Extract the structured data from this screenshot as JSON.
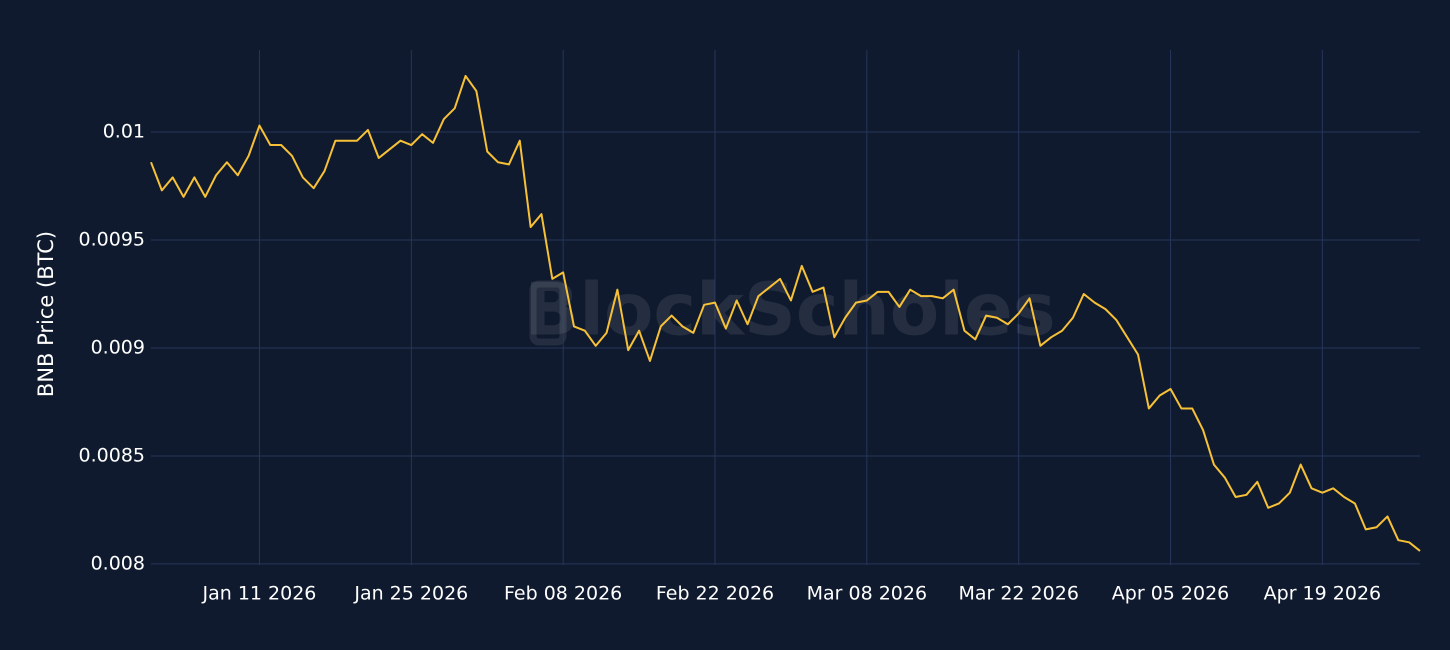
{
  "chart_data": {
    "type": "line",
    "watermark": "BlockScholes",
    "ylabel": "BNB Price (BTC)",
    "x": [
      "2026-01-01",
      "2026-01-02",
      "2026-01-03",
      "2026-01-04",
      "2026-01-05",
      "2026-01-06",
      "2026-01-07",
      "2026-01-08",
      "2026-01-09",
      "2026-01-10",
      "2026-01-11",
      "2026-01-12",
      "2026-01-13",
      "2026-01-14",
      "2026-01-15",
      "2026-01-16",
      "2026-01-17",
      "2026-01-18",
      "2026-01-19",
      "2026-01-20",
      "2026-01-21",
      "2026-01-22",
      "2026-01-23",
      "2026-01-24",
      "2026-01-25",
      "2026-01-26",
      "2026-01-27",
      "2026-01-28",
      "2026-01-29",
      "2026-01-30",
      "2026-01-31",
      "2026-02-01",
      "2026-02-02",
      "2026-02-03",
      "2026-02-04",
      "2026-02-05",
      "2026-02-06",
      "2026-02-07",
      "2026-02-08",
      "2026-02-09",
      "2026-02-10",
      "2026-02-11",
      "2026-02-12",
      "2026-02-13",
      "2026-02-14",
      "2026-02-15",
      "2026-02-16",
      "2026-02-17",
      "2026-02-18",
      "2026-02-19",
      "2026-02-20",
      "2026-02-21",
      "2026-02-22",
      "2026-02-23",
      "2026-02-24",
      "2026-02-25",
      "2026-02-26",
      "2026-02-27",
      "2026-02-28",
      "2026-03-01",
      "2026-03-02",
      "2026-03-03",
      "2026-03-04",
      "2026-03-05",
      "2026-03-06",
      "2026-03-07",
      "2026-03-08",
      "2026-03-09",
      "2026-03-10",
      "2026-03-11",
      "2026-03-12",
      "2026-03-13",
      "2026-03-14",
      "2026-03-15",
      "2026-03-16",
      "2026-03-17",
      "2026-03-18",
      "2026-03-19",
      "2026-03-20",
      "2026-03-21",
      "2026-03-22",
      "2026-03-23",
      "2026-03-24",
      "2026-03-25",
      "2026-03-26",
      "2026-03-27",
      "2026-03-28",
      "2026-03-29",
      "2026-03-30",
      "2026-03-31",
      "2026-04-01",
      "2026-04-02",
      "2026-04-03",
      "2026-04-04",
      "2026-04-05",
      "2026-04-06",
      "2026-04-07",
      "2026-04-08",
      "2026-04-09",
      "2026-04-10",
      "2026-04-11",
      "2026-04-12",
      "2026-04-13",
      "2026-04-14",
      "2026-04-15",
      "2026-04-16",
      "2026-04-17",
      "2026-04-18",
      "2026-04-19",
      "2026-04-20",
      "2026-04-21",
      "2026-04-22",
      "2026-04-23",
      "2026-04-24",
      "2026-04-25",
      "2026-04-26",
      "2026-04-27",
      "2026-04-28"
    ],
    "series": [
      {
        "name": "BNB",
        "color": "#f7c137",
        "values": [
          0.00986,
          0.00973,
          0.00979,
          0.0097,
          0.00979,
          0.0097,
          0.0098,
          0.00986,
          0.0098,
          0.00989,
          0.01003,
          0.00994,
          0.00994,
          0.00989,
          0.00979,
          0.00974,
          0.00982,
          0.00996,
          0.00996,
          0.00996,
          0.01001,
          0.00988,
          0.00992,
          0.00996,
          0.00994,
          0.00999,
          0.00995,
          0.01006,
          0.01011,
          0.01026,
          0.01019,
          0.00991,
          0.00986,
          0.00985,
          0.00996,
          0.00956,
          0.00962,
          0.00932,
          0.00935,
          0.0091,
          0.00908,
          0.00901,
          0.00907,
          0.00927,
          0.00899,
          0.00908,
          0.00894,
          0.0091,
          0.00915,
          0.0091,
          0.00907,
          0.0092,
          0.00921,
          0.00909,
          0.00922,
          0.00911,
          0.00924,
          0.00928,
          0.00932,
          0.00922,
          0.00938,
          0.00926,
          0.00928,
          0.00905,
          0.00914,
          0.00921,
          0.00922,
          0.00926,
          0.00926,
          0.00919,
          0.00927,
          0.00924,
          0.00924,
          0.00923,
          0.00927,
          0.00908,
          0.00904,
          0.00915,
          0.00914,
          0.00911,
          0.00916,
          0.00923,
          0.00901,
          0.00905,
          0.00908,
          0.00914,
          0.00925,
          0.00921,
          0.00918,
          0.00913,
          0.00905,
          0.00897,
          0.00872,
          0.00878,
          0.00881,
          0.00872,
          0.00872,
          0.00862,
          0.00846,
          0.0084,
          0.00831,
          0.00832,
          0.00838,
          0.00826,
          0.00828,
          0.00833,
          0.00846,
          0.00835,
          0.00833,
          0.00835,
          0.00831,
          0.00828,
          0.00816,
          0.00817,
          0.00822,
          0.00811,
          0.0081,
          0.00806
        ]
      }
    ],
    "xlim": [
      "2026-01-01",
      "2026-04-28"
    ],
    "xticks": [
      {
        "value": "2026-01-11",
        "label": "Jan 11 2026"
      },
      {
        "value": "2026-01-25",
        "label": "Jan 25 2026"
      },
      {
        "value": "2026-02-08",
        "label": "Feb 08 2026"
      },
      {
        "value": "2026-02-22",
        "label": "Feb 22 2026"
      },
      {
        "value": "2026-03-08",
        "label": "Mar 08 2026"
      },
      {
        "value": "2026-03-22",
        "label": "Mar 22 2026"
      },
      {
        "value": "2026-04-05",
        "label": "Apr 05 2026"
      },
      {
        "value": "2026-04-19",
        "label": "Apr 19 2026"
      }
    ],
    "ylim": [
      0.007995,
      0.01038
    ],
    "yticks": [
      0.008,
      0.0085,
      0.009,
      0.0095,
      0.01
    ],
    "grid": true
  }
}
